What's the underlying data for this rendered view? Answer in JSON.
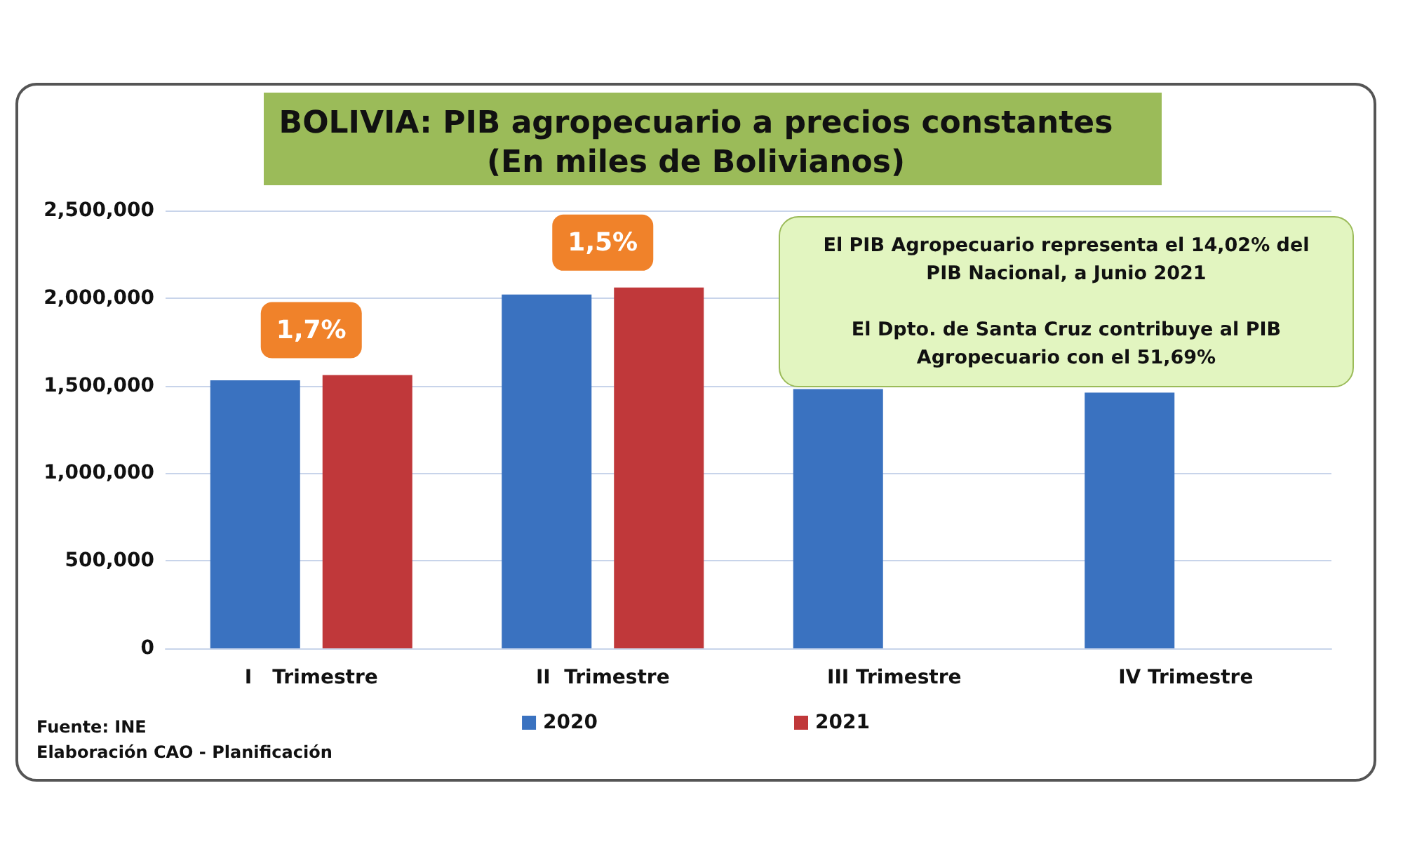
{
  "chart_data": {
    "type": "bar",
    "title": "BOLIVIA: PIB agropecuario a precios constantes",
    "subtitle": "(En miles de Bolivianos)",
    "categories": [
      "I   Trimestre",
      "II  Trimestre",
      "III Trimestre",
      "IV Trimestre"
    ],
    "series": [
      {
        "name": "2020",
        "color": "#3a72c0",
        "values": [
          1530000,
          2020000,
          1480000,
          1460000
        ]
      },
      {
        "name": "2021",
        "color": "#c0383a",
        "values": [
          1560000,
          2060000,
          null,
          null
        ]
      }
    ],
    "ylim": [
      0,
      2500000
    ],
    "yticks": [
      0,
      {
        "value": 500000,
        "label": "500,000"
      },
      {
        "value": 1000000,
        "label": "1,000,000"
      },
      {
        "value": 1500000,
        "label": "1,500,000"
      },
      {
        "value": 2000000,
        "label": "2,000,000"
      },
      {
        "value": 2500000,
        "label": "2,500,000"
      }
    ],
    "grid": "y",
    "legend": "bottom",
    "annotations": [
      "1,7%",
      "1,5%",
      "El PIB Agropecuario representa el 14,02% del\nPIB Nacional, a Junio 2021\n\nEl Dpto. de Santa Cruz contribuye al PIB\nAgropecuario con el  51,69%",
      "Fuente: INE",
      "Elaboración CAO - Planificación"
    ]
  }
}
